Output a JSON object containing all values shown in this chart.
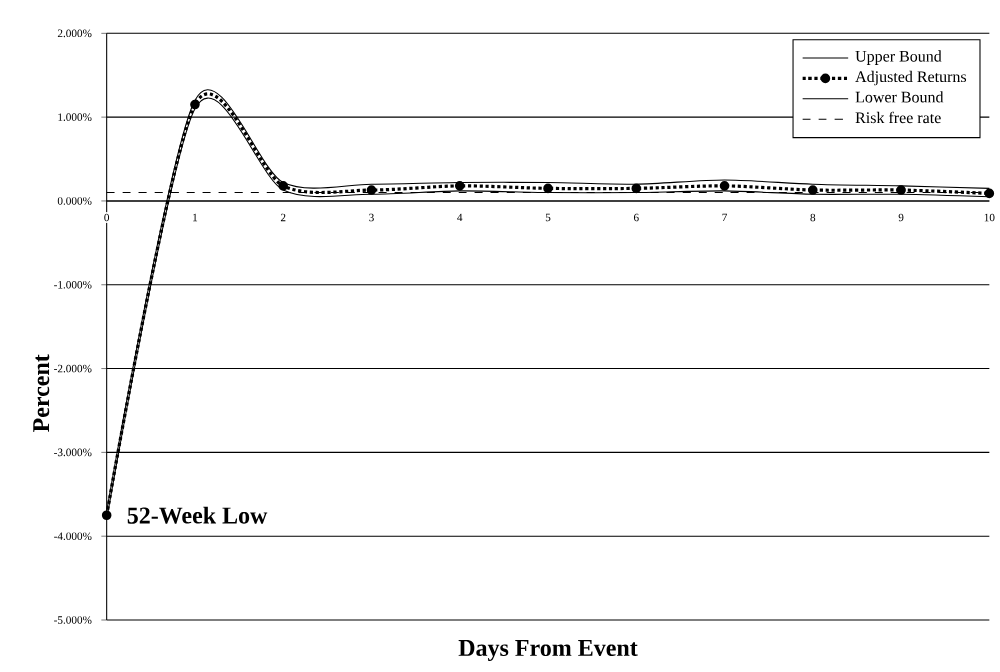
{
  "chart_data": {
    "type": "line",
    "xlabel": "Days From Event",
    "ylabel": "Percent",
    "x": [
      0,
      1,
      2,
      3,
      4,
      5,
      6,
      7,
      8,
      9,
      10
    ],
    "series": [
      {
        "name": "Upper Bound",
        "color": "#000000",
        "line_style": "solid",
        "marker": "none",
        "values": [
          -3.7,
          1.2,
          0.22,
          0.2,
          0.22,
          0.22,
          0.2,
          0.25,
          0.2,
          0.18,
          0.15
        ]
      },
      {
        "name": "Adjusted Returns",
        "color": "#000000",
        "line_style": "dotted",
        "marker": "circle",
        "values": [
          -3.75,
          1.15,
          0.18,
          0.13,
          0.18,
          0.15,
          0.15,
          0.18,
          0.13,
          0.13,
          0.09
        ]
      },
      {
        "name": "Lower Bound",
        "color": "#000000",
        "line_style": "solid",
        "marker": "none",
        "values": [
          -3.8,
          1.1,
          0.13,
          0.08,
          0.12,
          0.1,
          0.1,
          0.12,
          0.08,
          0.08,
          0.05
        ]
      },
      {
        "name": "Risk free rate",
        "color": "#000000",
        "line_style": "dashed",
        "marker": "none",
        "values": [
          0.1,
          0.1,
          0.1,
          0.1,
          0.1,
          0.1,
          0.1,
          0.1,
          0.1,
          0.1,
          0.1
        ]
      }
    ],
    "xlim": [
      0,
      10
    ],
    "xticks": [
      0,
      1,
      2,
      3,
      4,
      5,
      6,
      7,
      8,
      9,
      10
    ],
    "ylim": [
      -5,
      2
    ],
    "yticks": [
      {
        "value": -5,
        "label": "-5.000%"
      },
      {
        "value": -4,
        "label": "-4.000%"
      },
      {
        "value": -3,
        "label": "-3.000%"
      },
      {
        "value": -2,
        "label": "-2.000%"
      },
      {
        "value": -1,
        "label": "-1.000%"
      },
      {
        "value": 0,
        "label": "0.000%"
      },
      {
        "value": 1,
        "label": "1.000%"
      },
      {
        "value": 2,
        "label": "2.000%"
      }
    ],
    "grid": "y",
    "legend": "top right",
    "annotations": [
      {
        "text": "52-Week Low",
        "x": 0,
        "y": -3.75
      }
    ]
  }
}
